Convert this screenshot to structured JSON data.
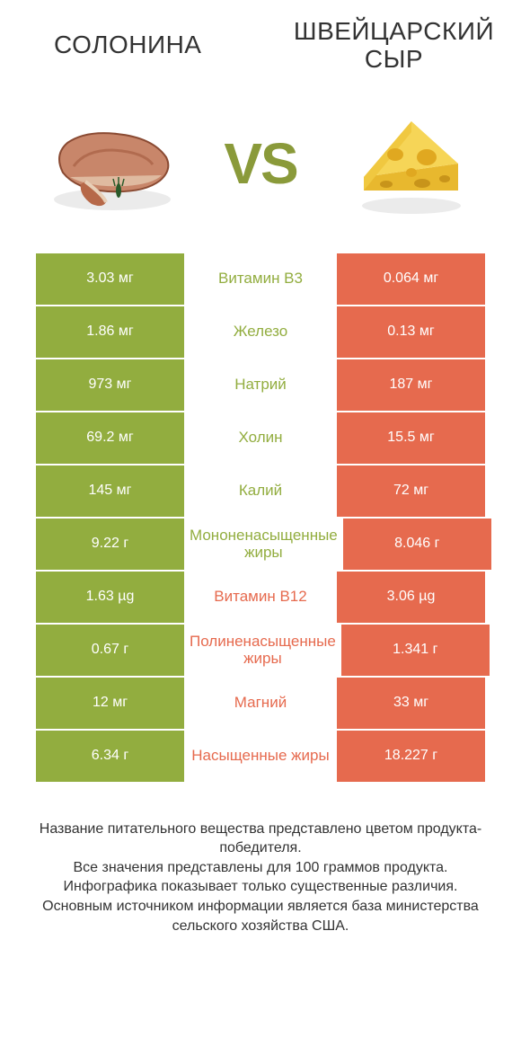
{
  "colors": {
    "green": "#92ad3f",
    "orange": "#e66a4e",
    "vs": "#8a9a3a",
    "text": "#333333"
  },
  "products": {
    "left": "Солонина",
    "right": "Швейцарский сыр"
  },
  "vs_label": "VS",
  "rows": [
    {
      "left": "3.03 мг",
      "label": "Витамин B3",
      "right": "0.064 мг",
      "winner": "left"
    },
    {
      "left": "1.86 мг",
      "label": "Железо",
      "right": "0.13 мг",
      "winner": "left"
    },
    {
      "left": "973 мг",
      "label": "Натрий",
      "right": "187 мг",
      "winner": "left"
    },
    {
      "left": "69.2 мг",
      "label": "Холин",
      "right": "15.5 мг",
      "winner": "left"
    },
    {
      "left": "145 мг",
      "label": "Калий",
      "right": "72 мг",
      "winner": "left"
    },
    {
      "left": "9.22 г",
      "label": "Мононенасыщенные жиры",
      "right": "8.046 г",
      "winner": "left"
    },
    {
      "left": "1.63 µg",
      "label": "Витамин B12",
      "right": "3.06 µg",
      "winner": "right"
    },
    {
      "left": "0.67 г",
      "label": "Полиненасыщенные жиры",
      "right": "1.341 г",
      "winner": "right"
    },
    {
      "left": "12 мг",
      "label": "Магний",
      "right": "33 мг",
      "winner": "right"
    },
    {
      "left": "6.34 г",
      "label": "Насыщенные жиры",
      "right": "18.227 г",
      "winner": "right"
    }
  ],
  "footer": "Название питательного вещества представлено цветом продукта-победителя.\nВсе значения представлены для 100 граммов продукта.\nИнфографика показывает только существенные различия.\nОсновным источником информации является база министерства сельского хозяйства США."
}
